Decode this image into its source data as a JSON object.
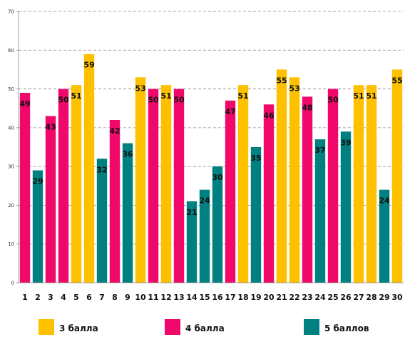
{
  "chart_data": {
    "type": "bar",
    "categories": [
      "1",
      "2",
      "3",
      "4",
      "5",
      "6",
      "7",
      "8",
      "9",
      "10",
      "11",
      "12",
      "13",
      "14",
      "15",
      "16",
      "17",
      "18",
      "19",
      "20",
      "21",
      "22",
      "23",
      "24",
      "25",
      "26",
      "27",
      "28",
      "29",
      "30"
    ],
    "values": [
      49,
      29,
      43,
      50,
      51,
      59,
      32,
      42,
      36,
      53,
      50,
      51,
      50,
      21,
      24,
      30,
      47,
      51,
      35,
      46,
      55,
      53,
      48,
      37,
      50,
      39,
      51,
      51,
      24,
      55
    ],
    "groups": [
      "4 балла",
      "5 баллов",
      "4 балла",
      "4 балла",
      "3 балла",
      "3 балла",
      "5 баллов",
      "4 балла",
      "5 баллов",
      "3 балла",
      "4 балла",
      "3 балла",
      "4 балла",
      "5 баллов",
      "5 баллов",
      "5 баллов",
      "4 балла",
      "3 балла",
      "5 баллов",
      "4 балла",
      "3 балла",
      "3 балла",
      "4 балла",
      "5 баллов",
      "4 балла",
      "5 баллов",
      "3 балла",
      "3 балла",
      "5 баллов",
      "3 балла"
    ],
    "series": [
      {
        "name": "3 балла",
        "color": "#FFC000"
      },
      {
        "name": "4 балла",
        "color": "#F0086A"
      },
      {
        "name": "5 баллов",
        "color": "#008080"
      }
    ],
    "ylim": [
      0,
      70
    ],
    "yticks": [
      0,
      10,
      20,
      30,
      40,
      50,
      60,
      70
    ],
    "grid": true,
    "data_labels": true,
    "legend_position": "bottom"
  }
}
